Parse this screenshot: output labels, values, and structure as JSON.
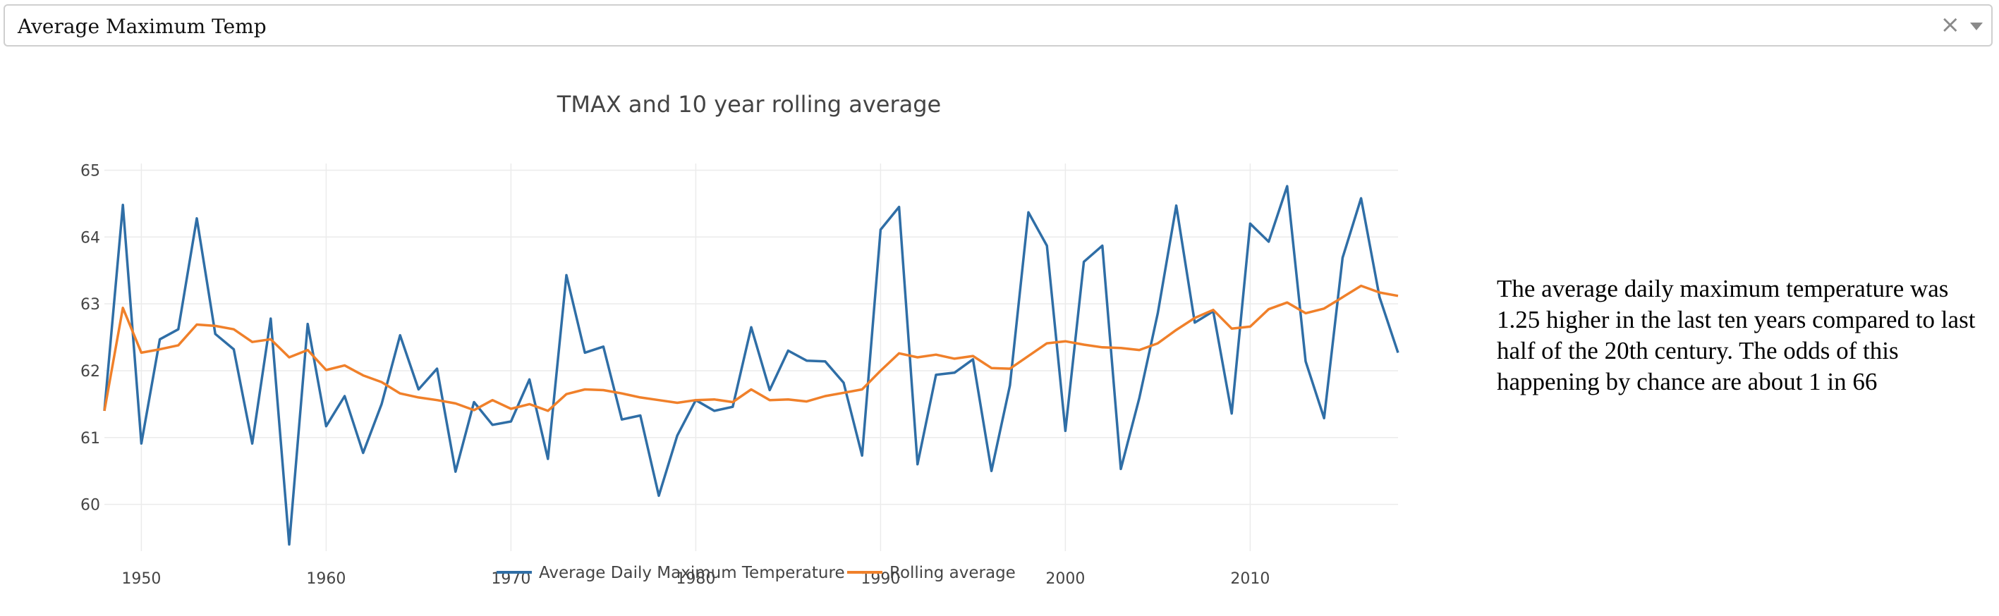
{
  "dropdown": {
    "selected": "Average Maximum Temp",
    "clear_icon": "×"
  },
  "note": "The average daily maximum temperature was 1.25 higher in the last ten years compared to last half of the 20th century. The odds of this happening by chance are about 1 in 66",
  "chart_data": {
    "type": "line",
    "title": "TMAX and 10 year rolling average",
    "xlabel": "",
    "ylabel": "",
    "xlim": [
      1948,
      2018
    ],
    "ylim": [
      59.3,
      65.1
    ],
    "xticks": [
      1950,
      1960,
      1970,
      1980,
      1990,
      2000,
      2010
    ],
    "yticks": [
      60,
      61,
      62,
      63,
      64,
      65
    ],
    "grid": true,
    "legend_position": "bottom",
    "colors": [
      "#2f6ea6",
      "#f0802a"
    ],
    "x": [
      1948,
      1949,
      1950,
      1951,
      1952,
      1953,
      1954,
      1955,
      1956,
      1957,
      1958,
      1959,
      1960,
      1961,
      1962,
      1963,
      1964,
      1965,
      1966,
      1967,
      1968,
      1969,
      1970,
      1971,
      1972,
      1973,
      1974,
      1975,
      1976,
      1977,
      1978,
      1979,
      1980,
      1981,
      1982,
      1983,
      1984,
      1985,
      1986,
      1987,
      1988,
      1989,
      1990,
      1991,
      1992,
      1993,
      1994,
      1995,
      1996,
      1997,
      1998,
      1999,
      2000,
      2001,
      2002,
      2003,
      2004,
      2005,
      2006,
      2007,
      2008,
      2009,
      2010,
      2011,
      2012,
      2013,
      2014,
      2015,
      2016,
      2017,
      2018
    ],
    "series": [
      {
        "name": "Average Daily Maximum Temperature",
        "values": [
          61.4,
          64.48,
          60.91,
          62.47,
          62.62,
          64.28,
          62.55,
          62.32,
          60.91,
          62.78,
          59.4,
          62.7,
          61.17,
          61.62,
          60.77,
          61.5,
          62.53,
          61.72,
          62.03,
          60.49,
          61.53,
          61.19,
          61.24,
          61.87,
          60.68,
          63.43,
          62.27,
          62.36,
          61.27,
          61.33,
          60.13,
          61.03,
          61.56,
          61.4,
          61.46,
          62.65,
          61.71,
          62.3,
          62.15,
          62.14,
          61.82,
          60.73,
          64.11,
          64.45,
          60.6,
          61.94,
          61.97,
          62.17,
          60.5,
          61.78,
          64.37,
          63.87,
          61.1,
          63.63,
          63.87,
          60.53,
          61.59,
          62.86,
          64.47,
          62.72,
          62.89,
          61.36,
          64.2,
          63.93,
          64.76,
          62.14,
          61.29,
          63.69,
          64.58,
          63.1,
          62.27
        ]
      },
      {
        "name": "Rolling average",
        "values": [
          61.4,
          62.94,
          62.27,
          62.32,
          62.38,
          62.69,
          62.67,
          62.62,
          62.43,
          62.47,
          62.2,
          62.31,
          62.01,
          62.08,
          61.93,
          61.83,
          61.66,
          61.6,
          61.56,
          61.51,
          61.41,
          61.56,
          61.43,
          61.5,
          61.4,
          61.65,
          61.72,
          61.71,
          61.66,
          61.6,
          61.56,
          61.52,
          61.56,
          61.57,
          61.53,
          61.72,
          61.56,
          61.57,
          61.54,
          61.62,
          61.67,
          61.72,
          62.0,
          62.26,
          62.2,
          62.24,
          62.18,
          62.22,
          62.04,
          62.03,
          62.22,
          62.41,
          62.44,
          62.39,
          62.35,
          62.34,
          62.31,
          62.41,
          62.61,
          62.79,
          62.91,
          62.63,
          62.66,
          62.92,
          63.02,
          62.86,
          62.93,
          63.1,
          63.27,
          63.17,
          63.12
        ]
      }
    ]
  }
}
